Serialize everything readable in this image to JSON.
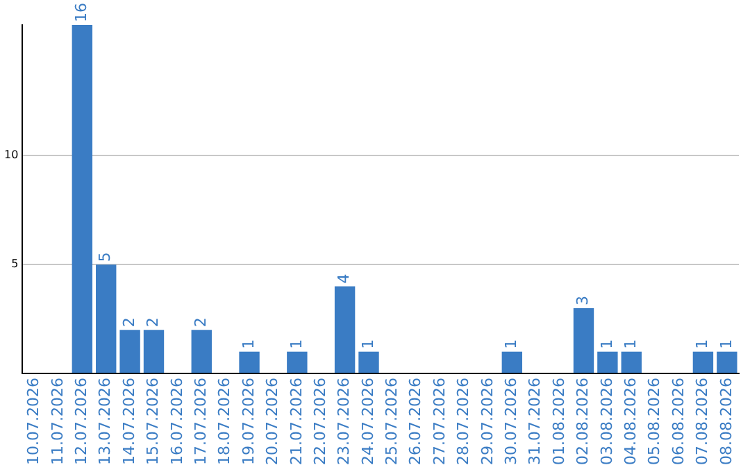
{
  "chart_data": {
    "type": "bar",
    "categories": [
      "10.07.2026",
      "11.07.2026",
      "12.07.2026",
      "13.07.2026",
      "14.07.2026",
      "15.07.2026",
      "16.07.2026",
      "17.07.2026",
      "18.07.2026",
      "19.07.2026",
      "20.07.2026",
      "21.07.2026",
      "22.07.2026",
      "23.07.2026",
      "24.07.2026",
      "25.07.2026",
      "26.07.2026",
      "27.07.2026",
      "28.07.2026",
      "29.07.2026",
      "30.07.2026",
      "31.07.2026",
      "01.08.2026",
      "02.08.2026",
      "03.08.2026",
      "04.08.2026",
      "05.08.2026",
      "06.08.2026",
      "07.08.2026",
      "08.08.2026"
    ],
    "values": [
      0,
      0,
      16,
      5,
      2,
      2,
      0,
      2,
      0,
      1,
      0,
      1,
      0,
      4,
      1,
      0,
      0,
      0,
      0,
      0,
      1,
      0,
      0,
      3,
      1,
      1,
      0,
      0,
      1,
      1
    ],
    "value_labels": [
      null,
      null,
      "16",
      "5",
      "2",
      "2",
      null,
      "2",
      null,
      "1",
      null,
      "1",
      null,
      "4",
      "1",
      null,
      null,
      null,
      null,
      null,
      "1",
      null,
      null,
      "3",
      "1",
      "1",
      null,
      null,
      "1",
      "1"
    ],
    "color": "#3a7cc4",
    "ylim": [
      0,
      16
    ],
    "yticks": [
      {
        "value": 0,
        "label": null
      },
      5,
      10
    ],
    "grid": "y",
    "legend": false
  }
}
